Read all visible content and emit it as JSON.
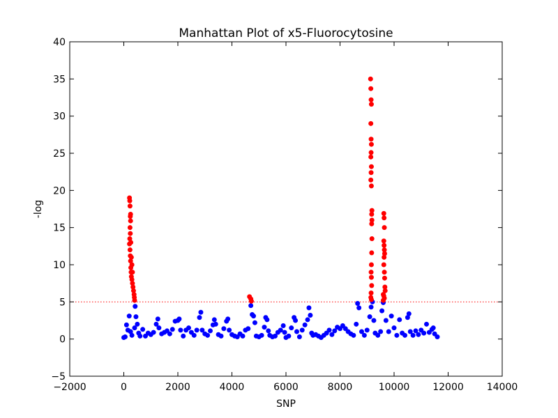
{
  "chart_data": {
    "type": "scatter",
    "title": "Manhattan Plot of x5-Fluorocytosine",
    "xlabel": "SNP",
    "ylabel": "-log",
    "xlim": [
      -2000,
      14000
    ],
    "ylim": [
      -5,
      40
    ],
    "xticks": [
      -2000,
      0,
      2000,
      4000,
      6000,
      8000,
      10000,
      12000,
      14000
    ],
    "xtick_labels": [
      "−2000",
      "0",
      "2000",
      "4000",
      "6000",
      "8000",
      "10000",
      "12000",
      "14000"
    ],
    "yticks": [
      -5,
      0,
      5,
      10,
      15,
      20,
      25,
      30,
      35,
      40
    ],
    "ytick_labels": [
      "−5",
      "0",
      "5",
      "10",
      "15",
      "20",
      "25",
      "30",
      "35",
      "40"
    ],
    "threshold": 5,
    "grid": false,
    "colors": {
      "significant": "#ff0000",
      "non_significant": "#0000ff",
      "threshold_line": "#ff0000"
    },
    "series": [
      {
        "color": "#0000ff",
        "points": [
          [
            0,
            0.2
          ],
          [
            50,
            0.3
          ],
          [
            100,
            1.9
          ],
          [
            150,
            1.2
          ],
          [
            200,
            3.1
          ],
          [
            250,
            1.0
          ],
          [
            300,
            0.5
          ],
          [
            400,
            1.5
          ],
          [
            420,
            4.4
          ],
          [
            450,
            3.0
          ],
          [
            500,
            2.0
          ],
          [
            550,
            0.8
          ],
          [
            600,
            0.4
          ],
          [
            700,
            1.3
          ],
          [
            800,
            0.4
          ],
          [
            900,
            0.8
          ],
          [
            1000,
            0.6
          ],
          [
            1100,
            0.9
          ],
          [
            1200,
            2.0
          ],
          [
            1260,
            2.7
          ],
          [
            1300,
            1.5
          ],
          [
            1400,
            0.7
          ],
          [
            1500,
            0.9
          ],
          [
            1600,
            1.1
          ],
          [
            1700,
            0.7
          ],
          [
            1800,
            1.3
          ],
          [
            1900,
            2.4
          ],
          [
            2000,
            2.5
          ],
          [
            2050,
            2.7
          ],
          [
            2100,
            1.2
          ],
          [
            2200,
            0.4
          ],
          [
            2300,
            1.2
          ],
          [
            2400,
            1.5
          ],
          [
            2500,
            0.9
          ],
          [
            2600,
            0.5
          ],
          [
            2700,
            1.2
          ],
          [
            2800,
            2.9
          ],
          [
            2850,
            3.6
          ],
          [
            2900,
            1.2
          ],
          [
            3000,
            0.7
          ],
          [
            3100,
            0.5
          ],
          [
            3200,
            1.1
          ],
          [
            3300,
            1.9
          ],
          [
            3350,
            2.6
          ],
          [
            3400,
            2.0
          ],
          [
            3500,
            0.6
          ],
          [
            3600,
            0.4
          ],
          [
            3700,
            1.4
          ],
          [
            3800,
            2.4
          ],
          [
            3850,
            2.7
          ],
          [
            3900,
            1.2
          ],
          [
            4000,
            0.6
          ],
          [
            4100,
            0.4
          ],
          [
            4200,
            0.3
          ],
          [
            4300,
            0.7
          ],
          [
            4400,
            0.4
          ],
          [
            4500,
            1.2
          ],
          [
            4600,
            1.4
          ],
          [
            4700,
            4.5
          ],
          [
            4750,
            3.3
          ],
          [
            4800,
            3.1
          ],
          [
            4850,
            2.2
          ],
          [
            4900,
            0.4
          ],
          [
            5000,
            0.3
          ],
          [
            5100,
            0.5
          ],
          [
            5200,
            1.6
          ],
          [
            5250,
            2.9
          ],
          [
            5300,
            2.6
          ],
          [
            5350,
            1.1
          ],
          [
            5400,
            0.5
          ],
          [
            5500,
            0.3
          ],
          [
            5600,
            0.4
          ],
          [
            5700,
            0.9
          ],
          [
            5800,
            1.2
          ],
          [
            5900,
            1.8
          ],
          [
            5950,
            0.9
          ],
          [
            6000,
            0.2
          ],
          [
            6100,
            0.4
          ],
          [
            6200,
            1.5
          ],
          [
            6300,
            2.9
          ],
          [
            6350,
            2.5
          ],
          [
            6400,
            1.0
          ],
          [
            6500,
            0.3
          ],
          [
            6600,
            1.2
          ],
          [
            6700,
            1.9
          ],
          [
            6800,
            2.6
          ],
          [
            6850,
            4.2
          ],
          [
            6900,
            3.2
          ],
          [
            6950,
            0.8
          ],
          [
            7000,
            0.5
          ],
          [
            7100,
            0.6
          ],
          [
            7200,
            0.4
          ],
          [
            7300,
            0.2
          ],
          [
            7400,
            0.5
          ],
          [
            7500,
            0.8
          ],
          [
            7600,
            1.2
          ],
          [
            7700,
            0.6
          ],
          [
            7800,
            1.1
          ],
          [
            7900,
            1.6
          ],
          [
            8000,
            1.4
          ],
          [
            8100,
            1.8
          ],
          [
            8200,
            1.4
          ],
          [
            8300,
            1.0
          ],
          [
            8400,
            0.7
          ],
          [
            8500,
            0.5
          ],
          [
            8600,
            2.0
          ],
          [
            8650,
            4.8
          ],
          [
            8700,
            4.2
          ],
          [
            8800,
            1.0
          ],
          [
            8900,
            0.5
          ],
          [
            9000,
            1.2
          ],
          [
            9100,
            3.0
          ],
          [
            9150,
            4.3
          ],
          [
            9200,
            5.0
          ],
          [
            9250,
            2.5
          ],
          [
            9300,
            0.8
          ],
          [
            9400,
            0.5
          ],
          [
            9500,
            1.0
          ],
          [
            9550,
            3.8
          ],
          [
            9600,
            4.9
          ],
          [
            9700,
            2.5
          ],
          [
            9800,
            1.0
          ],
          [
            9900,
            3.1
          ],
          [
            10000,
            1.5
          ],
          [
            10100,
            0.5
          ],
          [
            10200,
            2.6
          ],
          [
            10300,
            0.8
          ],
          [
            10400,
            0.5
          ],
          [
            10500,
            2.9
          ],
          [
            10550,
            3.4
          ],
          [
            10600,
            1.0
          ],
          [
            10700,
            0.5
          ],
          [
            10800,
            1.1
          ],
          [
            10900,
            0.6
          ],
          [
            11000,
            1.2
          ],
          [
            11100,
            0.8
          ],
          [
            11200,
            2.0
          ],
          [
            11300,
            0.9
          ],
          [
            11400,
            1.3
          ],
          [
            11450,
            1.5
          ],
          [
            11500,
            0.7
          ],
          [
            11600,
            0.3
          ]
        ]
      },
      {
        "color": "#ff0000",
        "points": [
          [
            210,
            19.0
          ],
          [
            220,
            18.6
          ],
          [
            230,
            17.9
          ],
          [
            240,
            16.5
          ],
          [
            250,
            15.9
          ],
          [
            230,
            15.0
          ],
          [
            240,
            14.2
          ],
          [
            220,
            13.5
          ],
          [
            210,
            12.8
          ],
          [
            230,
            12.0
          ],
          [
            240,
            11.2
          ],
          [
            250,
            10.5
          ],
          [
            260,
            9.6
          ],
          [
            270,
            9.0
          ],
          [
            280,
            8.4
          ],
          [
            300,
            8.0
          ],
          [
            320,
            7.5
          ],
          [
            340,
            7.0
          ],
          [
            360,
            6.5
          ],
          [
            380,
            6.0
          ],
          [
            390,
            5.6
          ],
          [
            400,
            5.2
          ],
          [
            300,
            10.0
          ],
          [
            320,
            9.0
          ],
          [
            280,
            11.0
          ],
          [
            260,
            13.0
          ],
          [
            250,
            16.8
          ],
          [
            4650,
            5.7
          ],
          [
            4700,
            5.4
          ],
          [
            4720,
            5.1
          ],
          [
            9130,
            35.0
          ],
          [
            9140,
            33.7
          ],
          [
            9150,
            32.2
          ],
          [
            9160,
            31.6
          ],
          [
            9140,
            29.0
          ],
          [
            9150,
            26.9
          ],
          [
            9160,
            26.2
          ],
          [
            9150,
            25.1
          ],
          [
            9140,
            24.5
          ],
          [
            9160,
            23.2
          ],
          [
            9150,
            22.4
          ],
          [
            9140,
            21.4
          ],
          [
            9160,
            20.6
          ],
          [
            9180,
            17.3
          ],
          [
            9170,
            16.8
          ],
          [
            9180,
            16.0
          ],
          [
            9170,
            15.5
          ],
          [
            9180,
            13.5
          ],
          [
            9170,
            11.6
          ],
          [
            9160,
            10.0
          ],
          [
            9150,
            9.0
          ],
          [
            9160,
            8.3
          ],
          [
            9170,
            7.2
          ],
          [
            9150,
            6.2
          ],
          [
            9140,
            5.6
          ],
          [
            9160,
            5.3
          ],
          [
            9620,
            16.9
          ],
          [
            9630,
            16.3
          ],
          [
            9640,
            15.0
          ],
          [
            9620,
            13.2
          ],
          [
            9630,
            12.6
          ],
          [
            9640,
            12.0
          ],
          [
            9650,
            11.5
          ],
          [
            9630,
            11.0
          ],
          [
            9620,
            10.0
          ],
          [
            9640,
            9.0
          ],
          [
            9650,
            8.2
          ],
          [
            9660,
            7.0
          ],
          [
            9670,
            6.5
          ],
          [
            9600,
            6.0
          ],
          [
            9620,
            5.8
          ],
          [
            9640,
            5.5
          ],
          [
            9600,
            5.2
          ]
        ]
      }
    ]
  }
}
